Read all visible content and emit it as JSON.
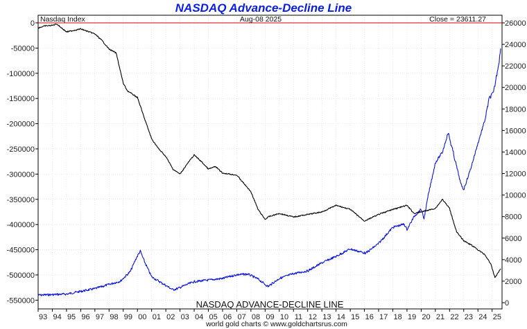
{
  "chart_data": {
    "type": "line",
    "title": "NASDAQ Advance-Decline Line",
    "index_label": "Nasdaq Index",
    "date_label": "Aug-08  2025",
    "close_label": "Close = 23611.27",
    "bottom_label": "NASDAQ ADVANCE-DECLINE LINE",
    "credit": "world gold charts © www.goldchartsrus.com",
    "x_labels": [
      "93",
      "94",
      "95",
      "96",
      "97",
      "98",
      "99",
      "00",
      "01",
      "02",
      "03",
      "04",
      "05",
      "06",
      "07",
      "08",
      "09",
      "10",
      "11",
      "12",
      "13",
      "14",
      "15",
      "16",
      "17",
      "18",
      "19",
      "20",
      "21",
      "22",
      "23",
      "24",
      "25"
    ],
    "y_left": {
      "ticks": [
        0,
        -50000,
        -100000,
        -150000,
        -200000,
        -250000,
        -300000,
        -350000,
        -400000,
        -450000,
        -500000,
        -550000
      ],
      "tick_labels": [
        "0",
        "-50000",
        "-100000",
        "-150000",
        "-200000",
        "-250000",
        "-300000",
        "-350000",
        "-400000",
        "-450000",
        "-500000",
        "-550000"
      ],
      "range": [
        -555000,
        0
      ]
    },
    "y_right": {
      "ticks": [
        26000,
        24000,
        22000,
        20000,
        18000,
        16000,
        14000,
        12000,
        10000,
        8000,
        6000,
        4000,
        2000,
        0
      ],
      "tick_labels": [
        "26000",
        "24000",
        "22000",
        "20000",
        "18000",
        "16000",
        "14000",
        "12000",
        "10000",
        "8000",
        "6000",
        "4000",
        "2000",
        "0"
      ],
      "range": [
        0,
        26000
      ]
    },
    "x_range": [
      1993.0,
      2025.7
    ],
    "grid": true,
    "zero_line_color": "#cc0000",
    "series": [
      {
        "name": "Nasdaq Index",
        "color": "#0a14e0",
        "axis": "right",
        "x": [
          1993.0,
          1994.0,
          1995.0,
          1996.0,
          1997.0,
          1998.0,
          1998.8,
          1999.5,
          1999.9,
          2000.2,
          2000.5,
          2001.0,
          2001.5,
          2002.0,
          2002.5,
          2002.8,
          2003.5,
          2004.0,
          2005.0,
          2006.0,
          2007.0,
          2007.8,
          2008.5,
          2009.2,
          2010.0,
          2011.0,
          2012.0,
          2013.0,
          2014.0,
          2015.0,
          2015.5,
          2016.1,
          2017.0,
          2018.0,
          2018.8,
          2019.0,
          2019.5,
          2020.0,
          2020.2,
          2020.5,
          2021.0,
          2021.5,
          2021.9,
          2022.4,
          2022.8,
          2023.0,
          2023.5,
          2024.0,
          2024.5,
          2024.8,
          2025.1,
          2025.3,
          2025.5,
          2025.6
        ],
        "y": [
          700,
          750,
          800,
          1050,
          1300,
          1700,
          2000,
          2900,
          4100,
          4800,
          3800,
          2400,
          2000,
          1600,
          1200,
          1300,
          1700,
          1950,
          2100,
          2250,
          2600,
          2650,
          2200,
          1500,
          2250,
          2700,
          2950,
          3700,
          4300,
          5000,
          4800,
          4600,
          5500,
          7000,
          7300,
          6800,
          8000,
          8700,
          7800,
          10000,
          13000,
          14000,
          15800,
          13200,
          11000,
          10500,
          12500,
          14800,
          17000,
          19000,
          19500,
          21000,
          22500,
          23611
        ]
      },
      {
        "name": "NASDAQ Advance-Decline Line",
        "color": "#000000",
        "axis": "left",
        "x": [
          1993.0,
          1993.5,
          1994.0,
          1994.3,
          1995.0,
          1996.0,
          1997.0,
          1997.5,
          1998.0,
          1998.5,
          1999.0,
          1999.3,
          2000.0,
          2000.5,
          2001.0,
          2001.5,
          2002.0,
          2002.5,
          2003.0,
          2003.5,
          2004.0,
          2004.5,
          2005.0,
          2005.5,
          2006.0,
          2006.5,
          2007.0,
          2008.0,
          2008.5,
          2009.0,
          2009.2,
          2010.0,
          2011.0,
          2012.0,
          2013.0,
          2014.0,
          2015.0,
          2016.0,
          2017.0,
          2018.0,
          2019.0,
          2019.5,
          2020.0,
          2021.0,
          2021.5,
          2022.0,
          2022.5,
          2023.0,
          2023.5,
          2024.0,
          2024.5,
          2024.9,
          2025.2,
          2025.6
        ],
        "y": [
          -10000,
          -6000,
          -5000,
          -2000,
          -18000,
          -12000,
          -22000,
          -35000,
          -52000,
          -60000,
          -120000,
          -135000,
          -148000,
          -190000,
          -230000,
          -250000,
          -265000,
          -290000,
          -300000,
          -280000,
          -262000,
          -275000,
          -290000,
          -285000,
          -298000,
          -300000,
          -302000,
          -335000,
          -370000,
          -390000,
          -385000,
          -378000,
          -385000,
          -380000,
          -375000,
          -362000,
          -370000,
          -393000,
          -380000,
          -370000,
          -362000,
          -378000,
          -375000,
          -368000,
          -350000,
          -368000,
          -415000,
          -432000,
          -440000,
          -450000,
          -460000,
          -478000,
          -505000,
          -488000
        ]
      }
    ]
  }
}
